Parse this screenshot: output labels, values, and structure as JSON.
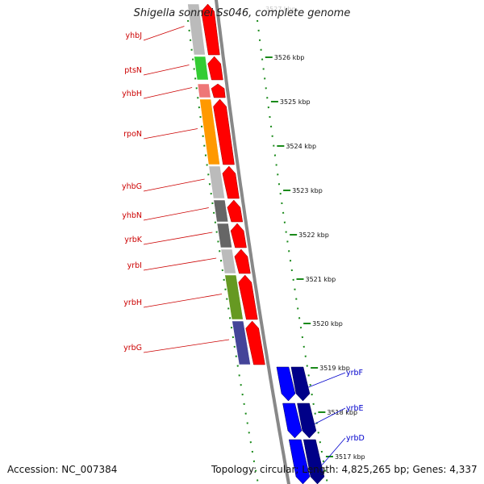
{
  "title": "Shigella sonnei Ss046, complete genome",
  "accession": "Accession: NC_007384",
  "topology": "Topology: circular; Length: 4,825,265 bp; Genes: 4,337",
  "colors": {
    "label_red": "#cc0000",
    "label_blue": "#0000cc",
    "cds_red": "#ff0000",
    "cds_blue": "#0000ff",
    "cds_navy": "#000088",
    "tick_green": "#1a8a1a",
    "backbone": "#888888"
  },
  "top_tick_label": "3527 kbp",
  "kbp_ticks": [
    "3526 kbp",
    "3525 kbp",
    "3524 kbp",
    "3523 kbp",
    "3522 kbp",
    "3521 kbp",
    "3520 kbp",
    "3519 kbp",
    "3518 kbp",
    "3517 kbp"
  ],
  "left_genes": [
    {
      "name": "yhbJ",
      "color": "#bbbbbb"
    },
    {
      "name": "ptsN",
      "color": "#33cc33"
    },
    {
      "name": "yhbH",
      "color": "#ee7777"
    },
    {
      "name": "rpoN",
      "color": "#ff9900"
    },
    {
      "name": "yhbG",
      "color": "#bbbbbb"
    },
    {
      "name": "yhbN",
      "color": "#666666"
    },
    {
      "name": "yrbK",
      "color": "#666666"
    },
    {
      "name": "yrbI",
      "color": "#bbbbbb"
    },
    {
      "name": "yrbH",
      "color": "#669922"
    },
    {
      "name": "yrbG",
      "color": "#444499"
    }
  ],
  "right_genes": [
    {
      "name": "yrbF"
    },
    {
      "name": "yrbE"
    },
    {
      "name": "yrbD"
    }
  ]
}
